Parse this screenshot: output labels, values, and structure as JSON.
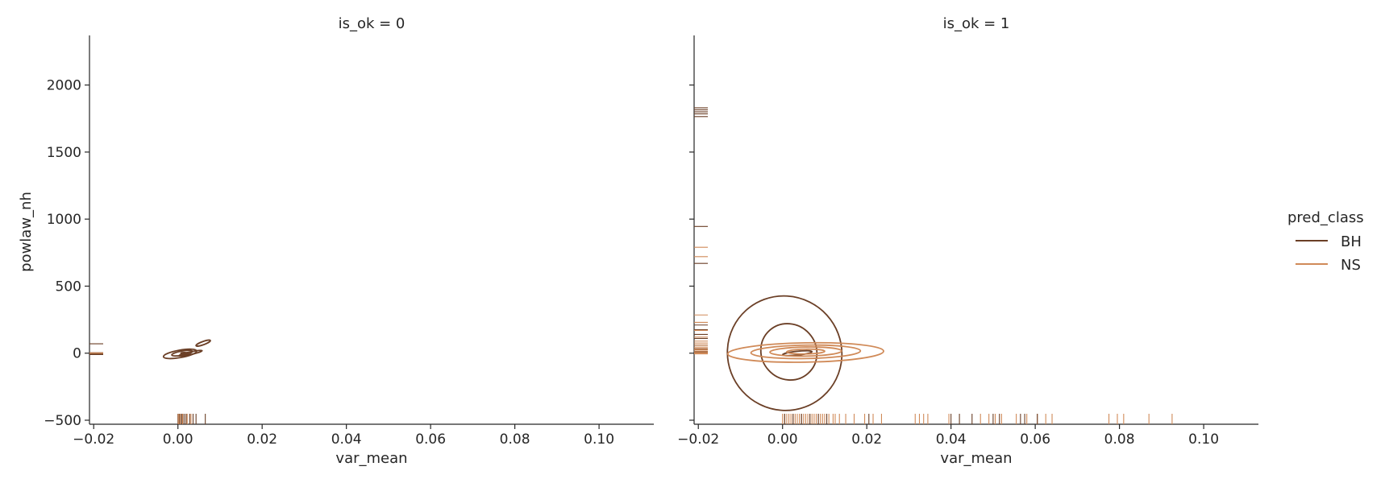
{
  "colors": {
    "BH": "#6b3f26",
    "NS": "#d08a58",
    "axis": "#262626"
  },
  "chart_data": {
    "type": "kde-contour facet (with rug)",
    "shared_axes": {
      "xlabel": "var_mean",
      "ylabel": "powlaw_nh",
      "xlim": [
        -0.021,
        0.113
      ],
      "ylim": [
        -530,
        2370
      ],
      "xticks": [
        -0.02,
        0.0,
        0.02,
        0.04,
        0.06,
        0.08,
        0.1
      ],
      "xtick_labels": [
        "−0.02",
        "0.00",
        "0.02",
        "0.04",
        "0.06",
        "0.08",
        "0.10"
      ],
      "yticks": [
        -500,
        0,
        500,
        1000,
        1500,
        2000
      ],
      "ytick_labels": [
        "−500",
        "0",
        "500",
        "1000",
        "1500",
        "2000"
      ],
      "grid": false
    },
    "legend": {
      "title": "pred_class",
      "placement": "right",
      "entries": [
        {
          "label": "BH",
          "color": "#6b3f26"
        },
        {
          "label": "NS",
          "color": "#d08a58"
        }
      ]
    },
    "panels": [
      {
        "title": "is_ok = 0",
        "contours": [
          {
            "series": "BH",
            "cx": 0.0005,
            "cy": -5,
            "rx": 0.004,
            "ry": 28,
            "rot": -10
          },
          {
            "series": "BH",
            "cx": 0.001,
            "cy": 0,
            "rx": 0.0025,
            "ry": 16,
            "rot": -10
          },
          {
            "series": "BH",
            "cx": 0.003,
            "cy": 0,
            "rx": 0.0028,
            "ry": 10,
            "rot": -12
          },
          {
            "series": "BH",
            "cx": 0.006,
            "cy": 75,
            "rx": 0.0018,
            "ry": 12,
            "rot": -20
          },
          {
            "series": "BH",
            "cx": 0.0015,
            "cy": 0,
            "rx": 0.0008,
            "ry": 5,
            "rot": 0
          }
        ],
        "rug_x": [
          {
            "series": "BH",
            "values": [
              0.0,
              0.0003,
              0.0006,
              0.0009,
              0.0012,
              0.0016,
              0.002,
              0.0028,
              0.0036,
              0.0043,
              0.0065
            ]
          },
          {
            "series": "NS",
            "values": [
              0.0001,
              0.0005,
              0.0011,
              0.0022,
              0.0031
            ]
          }
        ],
        "rug_y": [
          {
            "series": "BH",
            "values": [
              -10,
              -5,
              0,
              3,
              70
            ]
          },
          {
            "series": "NS",
            "values": [
              0,
              2
            ]
          }
        ]
      },
      {
        "title": "is_ok = 1",
        "contours": [
          {
            "series": "BH",
            "cx": 0.0005,
            "cy": 0,
            "rx": 0.0135,
            "ry": 430,
            "rot": -42
          },
          {
            "series": "BH",
            "cx": 0.0015,
            "cy": 10,
            "rx": 0.0065,
            "ry": 215,
            "rot": -42
          },
          {
            "series": "BH",
            "cx": 0.0035,
            "cy": 0,
            "rx": 0.0035,
            "ry": 14,
            "rot": -6
          },
          {
            "series": "NS",
            "cx": 0.0055,
            "cy": 5,
            "rx": 0.0185,
            "ry": 72,
            "rot": -1
          },
          {
            "series": "NS",
            "cx": 0.0055,
            "cy": 10,
            "rx": 0.013,
            "ry": 50,
            "rot": -1
          },
          {
            "series": "NS",
            "cx": 0.0055,
            "cy": 12,
            "rx": 0.0085,
            "ry": 34,
            "rot": -1
          },
          {
            "series": "NS",
            "cx": 0.0055,
            "cy": 12,
            "rx": 0.0045,
            "ry": 18,
            "rot": -1
          }
        ],
        "rug_x": [
          {
            "series": "NS",
            "values": [
              0.0,
              0.0005,
              0.001,
              0.0015,
              0.002,
              0.0025,
              0.003,
              0.0035,
              0.004,
              0.0045,
              0.005,
              0.0055,
              0.006,
              0.0065,
              0.007,
              0.0075,
              0.008,
              0.0085,
              0.009,
              0.0095,
              0.01,
              0.011,
              0.012,
              0.0125,
              0.0135,
              0.015,
              0.017,
              0.0195,
              0.0215,
              0.0235,
              0.0315,
              0.0325,
              0.0335,
              0.0345,
              0.0395,
              0.047,
              0.049,
              0.0505,
              0.052,
              0.0555,
              0.058,
              0.0605,
              0.0625,
              0.064,
              0.0775,
              0.0795,
              0.081,
              0.087,
              0.0925
            ]
          },
          {
            "series": "BH",
            "values": [
              0.0005,
              0.0025,
              0.0045,
              0.0065,
              0.0085,
              0.0105,
              0.0205,
              0.04,
              0.042,
              0.045,
              0.05,
              0.0515,
              0.0565,
              0.0575,
              0.0605
            ]
          }
        ],
        "rug_y": [
          {
            "series": "BH",
            "values": [
              1830,
              1815,
              1800,
              1785,
              1765,
              945,
              670,
              210,
              175,
              140,
              110,
              60,
              30,
              10,
              0
            ]
          },
          {
            "series": "NS",
            "values": [
              790,
              720,
              285,
              230,
              170,
              120,
              90,
              75,
              60,
              45,
              35,
              25,
              15,
              5,
              0,
              -5
            ]
          }
        ]
      }
    ]
  }
}
